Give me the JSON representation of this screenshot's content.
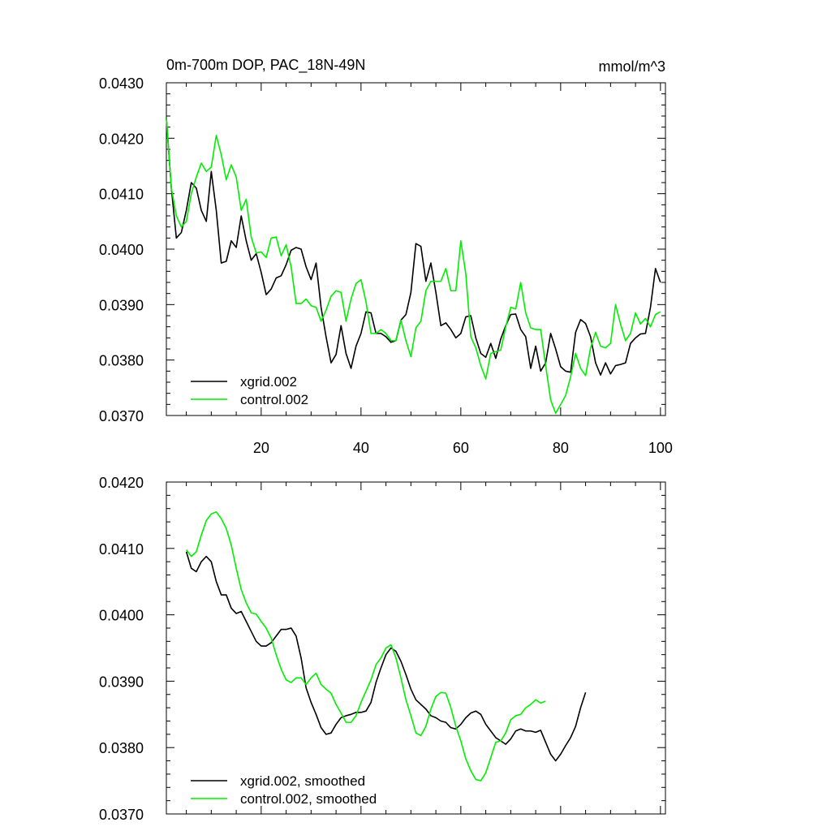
{
  "colors": {
    "xgrid": "#000000",
    "control": "#00ee00",
    "axis": "#000000",
    "background": "#ffffff"
  },
  "chart_data": [
    {
      "type": "line",
      "title": "0m-700m DOP, PAC_18N-49N",
      "units": "mmol/m^3",
      "xlabel": "",
      "ylabel": "",
      "xlim": [
        1,
        101
      ],
      "ylim": [
        0.037,
        0.043
      ],
      "xticks": [
        20,
        40,
        60,
        80,
        100
      ],
      "xtick_labels": [
        "20",
        "40",
        "60",
        "80",
        "100"
      ],
      "yticks": [
        0.037,
        0.038,
        0.039,
        0.04,
        0.041,
        0.042,
        0.043
      ],
      "ytick_labels": [
        "0.0370",
        "0.0380",
        "0.0390",
        "0.0400",
        "0.0410",
        "0.0420",
        "0.0430"
      ],
      "legend": "bottom-left",
      "series": [
        {
          "name": "xgrid.002",
          "color": "#000000",
          "values": [
            0.04236,
            0.0411,
            0.0402,
            0.0403,
            0.0407,
            0.0412,
            0.0411,
            0.0407,
            0.0405,
            0.0414,
            0.0407,
            0.03975,
            0.03978,
            0.04015,
            0.04003,
            0.0406,
            0.04015,
            0.0398,
            0.03992,
            0.03958,
            0.03918,
            0.03928,
            0.03948,
            0.03952,
            0.03972,
            0.03998,
            0.04003,
            0.04,
            0.03968,
            0.03945,
            0.03975,
            0.03895,
            0.03842,
            0.03795,
            0.0381,
            0.03862,
            0.03812,
            0.03785,
            0.03825,
            0.03848,
            0.03887,
            0.03885,
            0.03848,
            0.03848,
            0.03842,
            0.03832,
            0.03835,
            0.03872,
            0.03882,
            0.03922,
            0.0401,
            0.04005,
            0.03942,
            0.03975,
            0.03922,
            0.03862,
            0.03867,
            0.03855,
            0.0384,
            0.03848,
            0.03878,
            0.0388,
            0.0384,
            0.03812,
            0.03805,
            0.0383,
            0.03803,
            0.03838,
            0.03862,
            0.03882,
            0.03883,
            0.03855,
            0.03842,
            0.03785,
            0.03825,
            0.0378,
            0.03795,
            0.03848,
            0.0382,
            0.03788,
            0.0378,
            0.03778,
            0.0385,
            0.03873,
            0.03866,
            0.03842,
            0.03795,
            0.03773,
            0.03795,
            0.03775,
            0.0379,
            0.03792,
            0.03795,
            0.0383,
            0.0384,
            0.03847,
            0.03848,
            0.03895,
            0.03965,
            0.0394
          ]
        },
        {
          "name": "control.002",
          "color": "#00ee00",
          "values": [
            0.04236,
            0.0411,
            0.0406,
            0.0404,
            0.0405,
            0.041,
            0.0413,
            0.04155,
            0.0414,
            0.04148,
            0.04205,
            0.0417,
            0.04125,
            0.04152,
            0.0413,
            0.0407,
            0.0409,
            0.04022,
            0.03993,
            0.03995,
            0.03985,
            0.0402,
            0.04022,
            0.03988,
            0.04008,
            0.03968,
            0.03902,
            0.03902,
            0.0391,
            0.03898,
            0.03895,
            0.0387,
            0.0389,
            0.03915,
            0.03925,
            0.03922,
            0.0387,
            0.0391,
            0.03938,
            0.03945,
            0.03905,
            0.03848,
            0.03848,
            0.03855,
            0.03848,
            0.03835,
            0.03835,
            0.03872,
            0.03835,
            0.03806,
            0.03858,
            0.0387,
            0.03925,
            0.03942,
            0.03942,
            0.03942,
            0.03965,
            0.03925,
            0.03925,
            0.04015,
            0.03955,
            0.03842,
            0.03822,
            0.0379,
            0.03766,
            0.03812,
            0.03815,
            0.03818,
            0.0386,
            0.03895,
            0.03892,
            0.0394,
            0.03885,
            0.03858,
            0.03855,
            0.03855,
            0.0379,
            0.03728,
            0.03704,
            0.0372,
            0.03736,
            0.0377,
            0.03812,
            0.03785,
            0.03772,
            0.03822,
            0.0385,
            0.03825,
            0.03822,
            0.0383,
            0.039,
            0.03865,
            0.03835,
            0.03848,
            0.03885,
            0.03865,
            0.03875,
            0.0386,
            0.03882,
            0.03887
          ]
        }
      ]
    },
    {
      "type": "line",
      "title": "",
      "xlabel": "",
      "ylabel": "",
      "xlim": [
        1,
        101
      ],
      "ylim": [
        0.037,
        0.042
      ],
      "xticks": [
        20,
        40,
        60,
        80,
        100
      ],
      "yticks": [
        0.037,
        0.038,
        0.039,
        0.04,
        0.041,
        0.042
      ],
      "ytick_labels": [
        "0.0370",
        "0.0380",
        "0.0390",
        "0.0400",
        "0.0410",
        "0.0420"
      ],
      "legend": "bottom-left",
      "series": [
        {
          "name": "xgrid.002, smoothed",
          "color": "#000000",
          "x_start": 5,
          "values": [
            0.04095,
            0.0407,
            0.04065,
            0.0408,
            0.04088,
            0.0408,
            0.0405,
            0.0403,
            0.0403,
            0.0401,
            0.04002,
            0.04005,
            0.0399,
            0.03975,
            0.0396,
            0.03953,
            0.03953,
            0.03958,
            0.03968,
            0.03978,
            0.03978,
            0.0398,
            0.03968,
            0.03935,
            0.0389,
            0.03868,
            0.0385,
            0.0383,
            0.0382,
            0.03822,
            0.03835,
            0.03845,
            0.03848,
            0.0385,
            0.03853,
            0.03853,
            0.03855,
            0.03868,
            0.03898,
            0.0392,
            0.0394,
            0.0395,
            0.03945,
            0.0393,
            0.0391,
            0.03888,
            0.03872,
            0.03865,
            0.03858,
            0.03848,
            0.03845,
            0.0384,
            0.03838,
            0.0383,
            0.03828,
            0.03835,
            0.03845,
            0.03852,
            0.03855,
            0.0385,
            0.03835,
            0.03825,
            0.03815,
            0.0381,
            0.03805,
            0.03813,
            0.03825,
            0.03828,
            0.03825,
            0.03825,
            0.03823,
            0.03826,
            0.03808,
            0.0379,
            0.0378,
            0.0379,
            0.03803,
            0.03815,
            0.03832,
            0.0386,
            0.03883
          ]
        },
        {
          "name": "control.002, smoothed",
          "color": "#00ee00",
          "x_start": 5,
          "values": [
            0.04098,
            0.04088,
            0.04095,
            0.0412,
            0.04142,
            0.04152,
            0.04155,
            0.04145,
            0.0413,
            0.04105,
            0.0407,
            0.04038,
            0.04018,
            0.04003,
            0.04001,
            0.0399,
            0.0398,
            0.03965,
            0.0394,
            0.03918,
            0.03902,
            0.03898,
            0.03905,
            0.03905,
            0.03895,
            0.03905,
            0.03912,
            0.03895,
            0.03888,
            0.03882,
            0.03865,
            0.03852,
            0.03838,
            0.03838,
            0.03848,
            0.03868,
            0.03885,
            0.03902,
            0.03925,
            0.03935,
            0.0395,
            0.03955,
            0.03935,
            0.03905,
            0.03872,
            0.03848,
            0.03822,
            0.03818,
            0.03832,
            0.03858,
            0.03877,
            0.03883,
            0.03882,
            0.0386,
            0.03832,
            0.0381,
            0.03783,
            0.03765,
            0.03752,
            0.0375,
            0.03762,
            0.03785,
            0.03808,
            0.0381,
            0.03822,
            0.03842,
            0.03848,
            0.0385,
            0.0386,
            0.03865,
            0.03872,
            0.03867,
            0.0387
          ]
        }
      ]
    }
  ]
}
